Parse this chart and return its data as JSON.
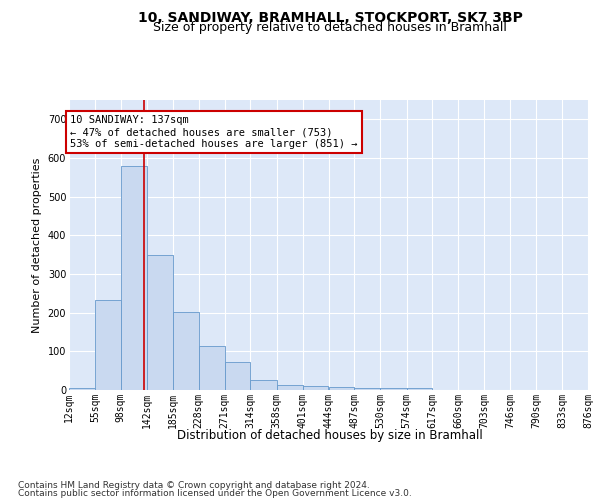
{
  "title_line1": "10, SANDIWAY, BRAMHALL, STOCKPORT, SK7 3BP",
  "title_line2": "Size of property relative to detached houses in Bramhall",
  "xlabel": "Distribution of detached houses by size in Bramhall",
  "ylabel": "Number of detached properties",
  "footer_line1": "Contains HM Land Registry data © Crown copyright and database right 2024.",
  "footer_line2": "Contains public sector information licensed under the Open Government Licence v3.0.",
  "annotation_line1": "10 SANDIWAY: 137sqm",
  "annotation_line2": "← 47% of detached houses are smaller (753)",
  "annotation_line3": "53% of semi-detached houses are larger (851) →",
  "bar_color": "#c9d9f0",
  "bar_edge_color": "#6699cc",
  "background_color": "#dde8f8",
  "grid_color": "#ffffff",
  "annotation_box_color": "#ffffff",
  "annotation_box_edge_color": "#cc0000",
  "vline_color": "#cc0000",
  "property_line_value": 137,
  "bin_edges": [
    12,
    55,
    98,
    142,
    185,
    228,
    271,
    314,
    358,
    401,
    444,
    487,
    530,
    574,
    617,
    660,
    703,
    746,
    790,
    833,
    876
  ],
  "bar_heights": [
    5,
    234,
    580,
    350,
    202,
    115,
    72,
    25,
    13,
    10,
    9,
    4,
    5,
    4,
    0,
    0,
    0,
    0,
    0,
    0
  ],
  "ylim": [
    0,
    750
  ],
  "yticks": [
    0,
    100,
    200,
    300,
    400,
    500,
    600,
    700
  ],
  "title_fontsize": 10,
  "subtitle_fontsize": 9,
  "xlabel_fontsize": 8.5,
  "ylabel_fontsize": 8,
  "tick_fontsize": 7,
  "footer_fontsize": 6.5,
  "annotation_fontsize": 7.5
}
